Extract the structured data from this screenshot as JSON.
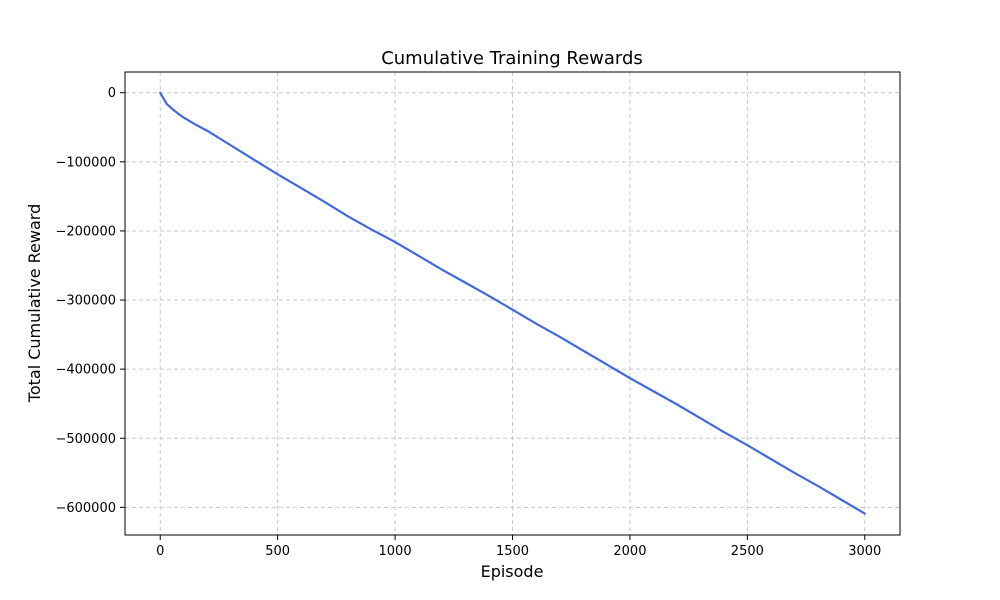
{
  "chart_data": {
    "type": "line",
    "title": "Cumulative Training Rewards",
    "xlabel": "Episode",
    "ylabel": "Total Cumulative Reward",
    "xlim": [
      -150,
      3150
    ],
    "ylim": [
      -640000,
      30000
    ],
    "xticks": [
      0,
      500,
      1000,
      1500,
      2000,
      2500,
      3000
    ],
    "xtick_labels": [
      "0",
      "500",
      "1000",
      "1500",
      "2000",
      "2500",
      "3000"
    ],
    "yticks": [
      0,
      -100000,
      -200000,
      -300000,
      -400000,
      -500000,
      -600000
    ],
    "ytick_labels": [
      "0",
      "−100000",
      "−200000",
      "−300000",
      "−400000",
      "−500000",
      "−600000"
    ],
    "grid": true,
    "series": [
      {
        "color": "#4169e1",
        "x": [
          0,
          10,
          20,
          30,
          50,
          75,
          100,
          150,
          200,
          300,
          400,
          500,
          600,
          700,
          800,
          900,
          1000,
          1100,
          1200,
          1300,
          1400,
          1500,
          1600,
          1700,
          1800,
          1900,
          2000,
          2100,
          2200,
          2300,
          2400,
          2500,
          2600,
          2700,
          2800,
          2900,
          3000
        ],
        "y": [
          0,
          -6000,
          -12000,
          -17000,
          -23000,
          -30000,
          -36000,
          -46000,
          -55000,
          -76000,
          -97000,
          -118000,
          -138000,
          -158000,
          -179000,
          -198000,
          -216000,
          -236000,
          -256000,
          -275000,
          -294000,
          -314000,
          -334000,
          -353000,
          -373000,
          -393000,
          -413000,
          -432000,
          -451000,
          -471000,
          -491000,
          -510000,
          -530000,
          -550000,
          -569000,
          -589000,
          -609000
        ]
      }
    ]
  }
}
